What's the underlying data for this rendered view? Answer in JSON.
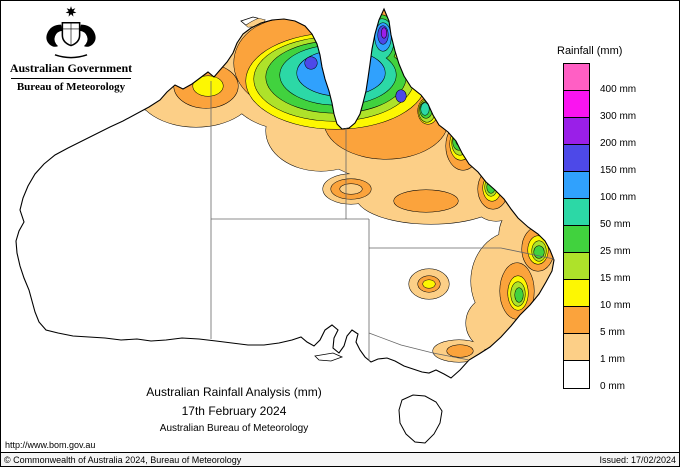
{
  "header": {
    "government": "Australian Government",
    "bureau": "Bureau of Meteorology"
  },
  "legend": {
    "title": "Rainfall (mm)",
    "entries": [
      {
        "label": "400 mm",
        "color": "#ff5fc4"
      },
      {
        "label": "300 mm",
        "color": "#fa14f0"
      },
      {
        "label": "200 mm",
        "color": "#9a1fe8"
      },
      {
        "label": "150 mm",
        "color": "#4d49e8"
      },
      {
        "label": "100 mm",
        "color": "#30a1fd"
      },
      {
        "label": "50 mm",
        "color": "#2cd8a6"
      },
      {
        "label": "25 mm",
        "color": "#41d23e"
      },
      {
        "label": "15 mm",
        "color": "#aee22a"
      },
      {
        "label": "10 mm",
        "color": "#fdf702"
      },
      {
        "label": "5 mm",
        "color": "#fba33c"
      },
      {
        "label": "1 mm",
        "color": "#fccf87"
      },
      {
        "label": "0 mm",
        "color": "#ffffff"
      }
    ]
  },
  "caption": {
    "title": "Australian Rainfall Analysis (mm)",
    "date": "17th February 2024",
    "org": "Australian Bureau of Meteorology"
  },
  "links": {
    "url": "http://www.bom.gov.au"
  },
  "footer": {
    "copyright": "© Commonwealth of Australia 2024, Bureau of Meteorology",
    "issued": "Issued: 17/02/2024"
  }
}
